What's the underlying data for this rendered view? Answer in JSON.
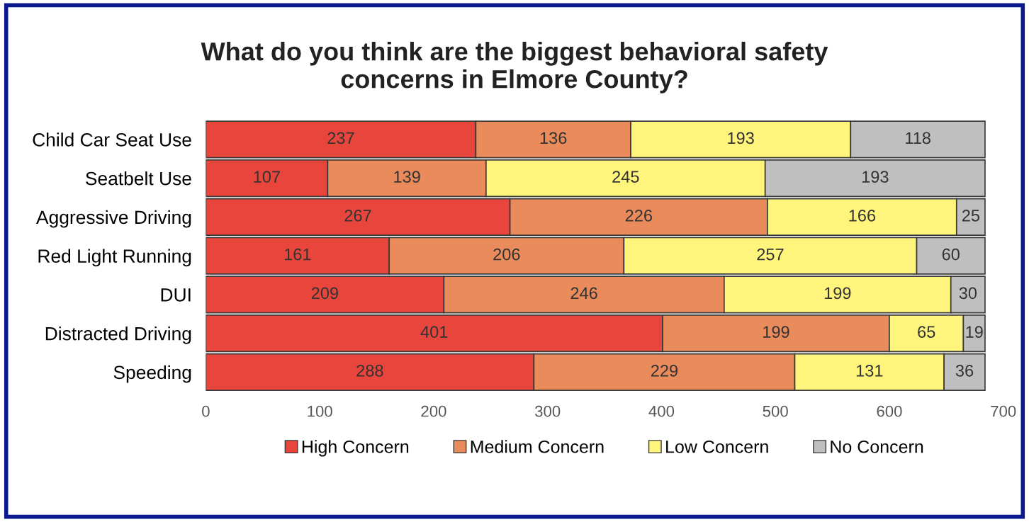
{
  "chart_data": {
    "type": "bar",
    "orientation": "horizontal",
    "stacked": true,
    "data_labels": true,
    "title": "What do you think are the biggest behavioral safety\nconcerns in Elmore County?",
    "categories": [
      "Child Car Seat Use",
      "Seatbelt Use",
      "Aggressive Driving",
      "Red Light Running",
      "DUI",
      "Distracted Driving",
      "Speeding"
    ],
    "series": [
      {
        "name": "High Concern",
        "color": "#e8453c",
        "values": [
          237,
          107,
          267,
          161,
          209,
          401,
          288
        ]
      },
      {
        "name": "Medium Concern",
        "color": "#e98b5b",
        "values": [
          136,
          139,
          226,
          206,
          246,
          199,
          229
        ]
      },
      {
        "name": "Low Concern",
        "color": "#fff47c",
        "values": [
          193,
          245,
          166,
          257,
          199,
          65,
          131
        ]
      },
      {
        "name": "No Concern",
        "color": "#bfbfbf",
        "values": [
          118,
          193,
          25,
          60,
          30,
          19,
          36
        ]
      }
    ],
    "xlim": [
      0,
      700
    ],
    "xticks": [
      0,
      100,
      200,
      300,
      400,
      500,
      600,
      700
    ],
    "grid": false,
    "legend": "bottom"
  }
}
